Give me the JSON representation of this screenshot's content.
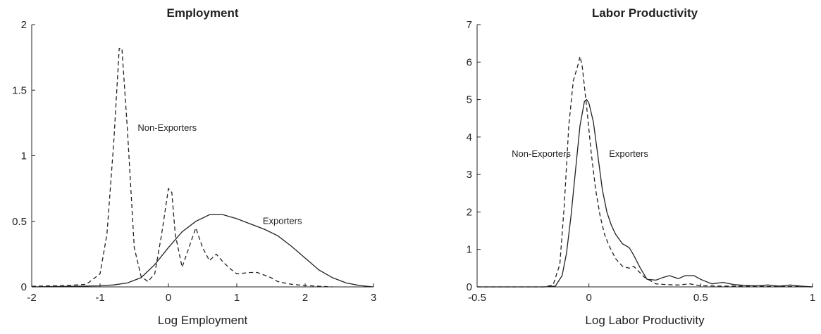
{
  "chart_data": [
    {
      "type": "line",
      "title": "Employment",
      "xlabel": "Log Employment",
      "ylabel": "",
      "xlim": [
        -2,
        3
      ],
      "ylim": [
        0,
        2
      ],
      "xticks": [
        -2,
        -1,
        0,
        1,
        2,
        3
      ],
      "yticks": [
        0,
        0.5,
        1,
        1.5,
        2
      ],
      "xtick_labels": [
        "-2",
        "-1",
        "0",
        "1",
        "2",
        "3"
      ],
      "ytick_labels": [
        "0",
        "0.5",
        "1",
        "1.5",
        "2"
      ],
      "grid": false,
      "series": [
        {
          "name": "Exporters",
          "style": "solid",
          "x": [
            -2,
            -1.5,
            -1,
            -0.8,
            -0.6,
            -0.4,
            -0.2,
            0,
            0.2,
            0.4,
            0.6,
            0.8,
            1.0,
            1.2,
            1.4,
            1.6,
            1.8,
            2.0,
            2.2,
            2.4,
            2.6,
            2.8,
            3.0
          ],
          "y": [
            0,
            0.004,
            0.008,
            0.015,
            0.03,
            0.07,
            0.17,
            0.3,
            0.42,
            0.5,
            0.55,
            0.55,
            0.52,
            0.48,
            0.44,
            0.39,
            0.31,
            0.22,
            0.13,
            0.07,
            0.03,
            0.01,
            0
          ]
        },
        {
          "name": "Non-Exporters",
          "style": "dashed",
          "x": [
            -2,
            -1.5,
            -1.2,
            -1.0,
            -0.9,
            -0.8,
            -0.72,
            -0.68,
            -0.6,
            -0.5,
            -0.4,
            -0.3,
            -0.2,
            -0.1,
            0,
            0.05,
            0.1,
            0.2,
            0.3,
            0.4,
            0.5,
            0.6,
            0.7,
            0.8,
            0.9,
            1.0,
            1.2,
            1.3,
            1.5,
            1.6,
            1.8,
            2.0,
            2.2,
            2.4
          ],
          "y": [
            0.005,
            0.01,
            0.02,
            0.1,
            0.4,
            1.1,
            1.82,
            1.82,
            1.2,
            0.3,
            0.08,
            0.04,
            0.1,
            0.4,
            0.75,
            0.72,
            0.4,
            0.15,
            0.3,
            0.45,
            0.3,
            0.2,
            0.25,
            0.19,
            0.14,
            0.1,
            0.11,
            0.11,
            0.07,
            0.04,
            0.02,
            0.01,
            0.005,
            0
          ]
        }
      ],
      "annotations": [
        {
          "text": "Non-Exporters",
          "x": -0.45,
          "y": 1.19
        },
        {
          "text": "Exporters",
          "x": 1.38,
          "y": 0.48
        }
      ]
    },
    {
      "type": "line",
      "title": "Labor Productivity",
      "xlabel": "Log Labor Productivity",
      "ylabel": "",
      "xlim": [
        -0.5,
        1
      ],
      "ylim": [
        0,
        7
      ],
      "xticks": [
        -0.5,
        0,
        0.5,
        1
      ],
      "yticks": [
        0,
        1,
        2,
        3,
        4,
        5,
        6,
        7
      ],
      "xtick_labels": [
        "-0.5",
        "0",
        "0.5",
        "1"
      ],
      "ytick_labels": [
        "0",
        "1",
        "2",
        "3",
        "4",
        "5",
        "6",
        "7"
      ],
      "grid": false,
      "series": [
        {
          "name": "Exporters",
          "style": "solid",
          "x": [
            -0.5,
            -0.2,
            -0.15,
            -0.12,
            -0.1,
            -0.08,
            -0.06,
            -0.04,
            -0.02,
            -0.01,
            0.0,
            0.02,
            0.04,
            0.06,
            0.08,
            0.1,
            0.12,
            0.15,
            0.18,
            0.2,
            0.23,
            0.26,
            0.3,
            0.33,
            0.36,
            0.4,
            0.43,
            0.47,
            0.5,
            0.55,
            0.6,
            0.65,
            0.7,
            0.75,
            0.8,
            0.85,
            0.9,
            0.95,
            1.0
          ],
          "y": [
            0,
            0,
            0.02,
            0.3,
            0.9,
            1.9,
            3.1,
            4.3,
            4.95,
            5.0,
            4.9,
            4.4,
            3.5,
            2.6,
            2.0,
            1.65,
            1.4,
            1.15,
            1.05,
            0.85,
            0.5,
            0.2,
            0.18,
            0.25,
            0.3,
            0.22,
            0.3,
            0.3,
            0.2,
            0.08,
            0.12,
            0.06,
            0.04,
            0.03,
            0.05,
            0.02,
            0.05,
            0.02,
            0
          ]
        },
        {
          "name": "Non-Exporters",
          "style": "dashed",
          "x": [
            -0.5,
            -0.2,
            -0.16,
            -0.13,
            -0.11,
            -0.09,
            -0.07,
            -0.05,
            -0.04,
            -0.03,
            -0.01,
            0.01,
            0.03,
            0.05,
            0.07,
            0.09,
            0.12,
            0.15,
            0.18,
            0.2,
            0.25,
            0.3,
            0.35,
            0.4,
            0.45,
            0.5,
            0.6,
            0.7,
            0.8,
            0.9,
            1.0
          ],
          "y": [
            0,
            0,
            0.05,
            0.6,
            2.2,
            4.3,
            5.5,
            5.9,
            6.15,
            5.9,
            4.8,
            3.6,
            2.6,
            1.9,
            1.4,
            1.1,
            0.75,
            0.55,
            0.5,
            0.55,
            0.25,
            0.08,
            0.06,
            0.05,
            0.08,
            0.03,
            0.02,
            0.02,
            0.01,
            0.01,
            0
          ]
        }
      ],
      "annotations": [
        {
          "text": "Non-Exporters",
          "x": -0.345,
          "y": 3.47
        },
        {
          "text": "Exporters",
          "x": 0.09,
          "y": 3.47
        }
      ]
    }
  ]
}
